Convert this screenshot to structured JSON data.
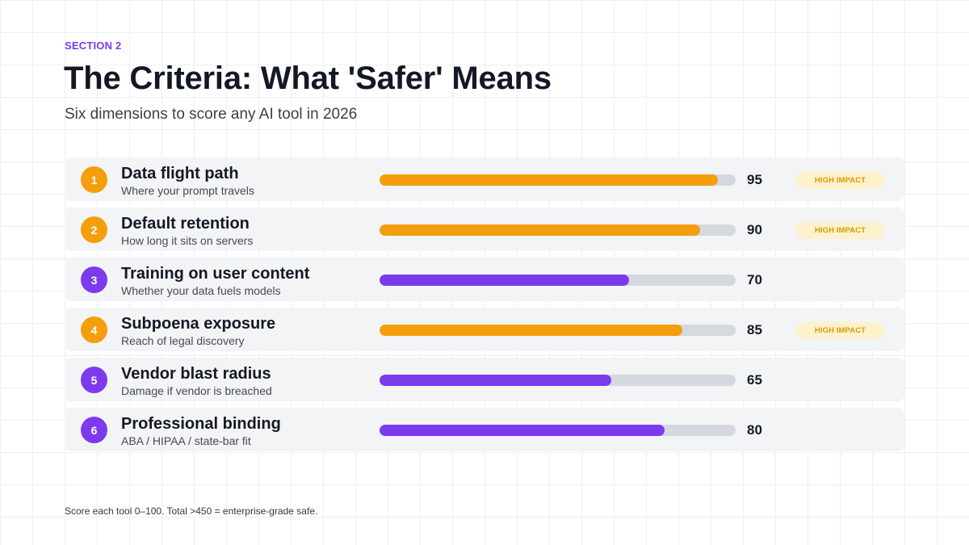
{
  "header": {
    "section": "SECTION 2",
    "title": "The Criteria: What 'Safer' Means",
    "subtitle": "Six dimensions to score any AI tool in 2026"
  },
  "colors": {
    "orange": "#f59e0b",
    "purple": "#7c3aed",
    "track": "#d5d8de"
  },
  "criteria": [
    {
      "number": "1",
      "title": "Data flight path",
      "description": "Where your prompt travels",
      "score": 95,
      "score_label": "95",
      "color": "orange",
      "impact": "HIGH IMPACT"
    },
    {
      "number": "2",
      "title": "Default retention",
      "description": "How long it sits on servers",
      "score": 90,
      "score_label": "90",
      "color": "orange",
      "impact": "HIGH IMPACT"
    },
    {
      "number": "3",
      "title": "Training on user content",
      "description": "Whether your data fuels models",
      "score": 70,
      "score_label": "70",
      "color": "purple",
      "impact": ""
    },
    {
      "number": "4",
      "title": "Subpoena exposure",
      "description": "Reach of legal discovery",
      "score": 85,
      "score_label": "85",
      "color": "orange",
      "impact": "HIGH IMPACT"
    },
    {
      "number": "5",
      "title": "Vendor blast radius",
      "description": "Damage if vendor is breached",
      "score": 65,
      "score_label": "65",
      "color": "purple",
      "impact": ""
    },
    {
      "number": "6",
      "title": "Professional binding",
      "description": "ABA / HIPAA / state-bar fit",
      "score": 80,
      "score_label": "80",
      "color": "purple",
      "impact": ""
    }
  ],
  "footnote": "Score each tool 0–100. Total >450 = enterprise-grade safe."
}
